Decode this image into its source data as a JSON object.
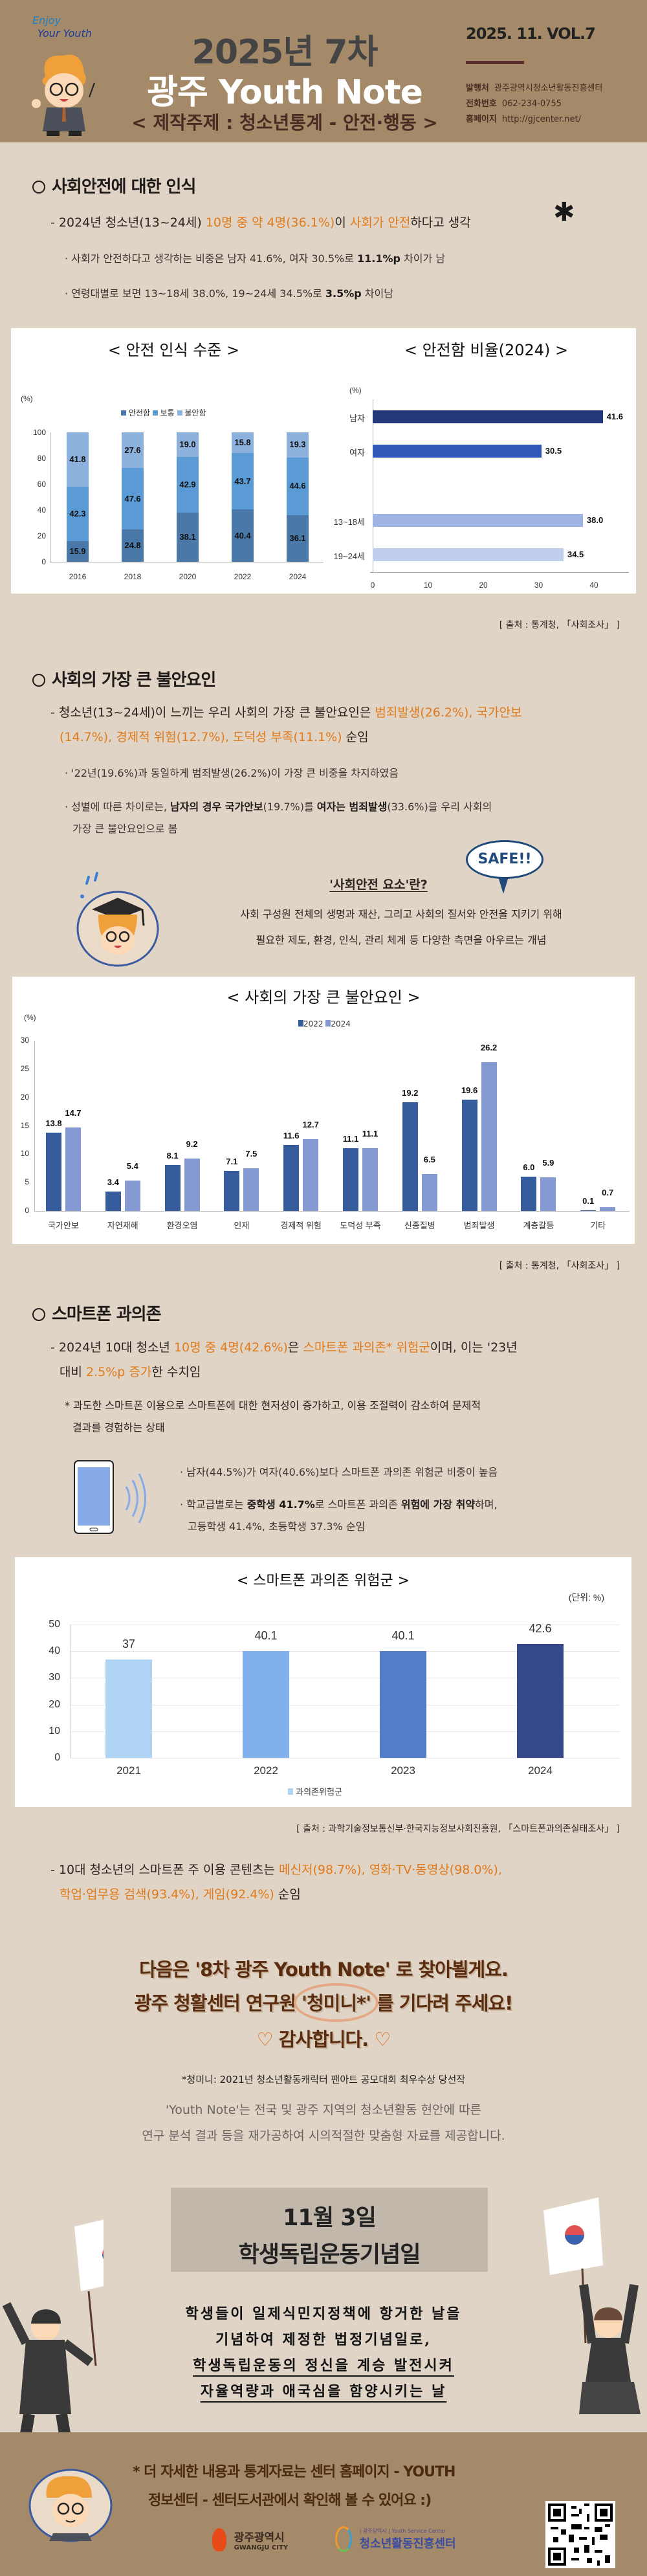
{
  "header": {
    "badge_line1": "Enjoy",
    "badge_line2": "Your Youth",
    "year_issue": "2025년 7차",
    "title": "광주 Youth Note",
    "subtitle": "< 제작주제 : 청소년통계 - 안전·행동 >",
    "volume": "2025. 11. VOL.7",
    "publisher_label": "발행처",
    "publisher_value": "광주광역시청소년활동진흥센터",
    "phone_label": "전화번호",
    "phone_value": "062-234-0755",
    "homepage_label": "홈페이지",
    "homepage_value": "http://gjcenter.net/"
  },
  "section1": {
    "title": "사회안전에 대한 인식",
    "dash_pre": "- 2024년 청소년(13~24세) ",
    "dash_o1": "10명 중 약 4명(36.1%)",
    "dash_mid": "이 ",
    "dash_o2": "사회가 안전",
    "dash_post": "하다고 생각",
    "dot1_pre": "· 사회가 안전하다고 생각하는 비중은 남자 41.6%, 여자 30.5%로 ",
    "dot1_b": "11.1%p",
    "dot1_post": " 차이가 남",
    "dot2_pre": "· 연령대별로 보면 13~18세 38.0%, 19~24세 34.5%로 ",
    "dot2_b": "3.5%p",
    "dot2_post": " 차이남",
    "source": "[ 출처 : 통계청, 「사회조사」 ]"
  },
  "section2": {
    "title": "사회의 가장 큰 불안요인",
    "dash_pre": "- 청소년(13~24세)이 느끼는 우리 사회의 가장 큰 불안요인은 ",
    "dash_o1": "범죄발생(26.2%), 국가안보",
    "dash_o2": "(14.7%), 경제적 위험(12.7%), 도덕성 부족(11.1%)",
    "dash_post": " 순임",
    "dot1": "· '22년(19.6%)과 동일하게 범죄발생(26.2%)이 가장 큰 비중을 차지하였음",
    "dot2_pre": "· 성별에 따른 차이로는, ",
    "dot2_b1": "남자의 경우 국가안보",
    "dot2_mid1": "(19.7%)를 ",
    "dot2_b2": "여자는 범죄발생",
    "dot2_mid2": "(33.6%)을 우리 사회의",
    "dot2_line2": "가장 큰 불안요인으로 봄",
    "callout_title": "'사회안전 요소'란?",
    "callout_bubble": "SAFE!!",
    "callout_line1": "사회 구성원 전체의 생명과 재산, 그리고 사회의 질서와 안전을 지키기 위해",
    "callout_line2": "필요한 제도, 환경, 인식, 관리 체계 등 다양한 측면을 아우르는 개념",
    "source": "[ 출처 : 통계청, 「사회조사」 ]"
  },
  "section3": {
    "title": "스마트폰 과의존",
    "dash_pre": "- 2024년 10대 청소년 ",
    "dash_o1": "10명 중 4명(42.6%)",
    "dash_mid": "은 ",
    "dash_o2": "스마트폰 과의존* 위험군",
    "dash_mid2": "이며, 이는 '23년",
    "dash_line2_pre": "대비 ",
    "dash_o3": "2.5%p 증가",
    "dash_line2_post": "한 수치임",
    "def_line1": "* 과도한 스마트폰 이용으로 스마트폰에 대한 현저성이 증가하고, 이용 조절력이 감소하여 문제적",
    "def_line2": "결과를 경험하는 상태",
    "dot1": "· 남자(44.5%)가 여자(40.6%)보다 스마트폰 과의존 위험군 비중이 높음",
    "dot2_pre": "· 학교급별로는 ",
    "dot2_b1": "중학생 41.7%",
    "dot2_mid": "로 스마트폰 과의존 ",
    "dot2_b2": "위험에 가장 취약",
    "dot2_post": "하며,",
    "dot2_line2": "고등학생 41.4%, 초등학생 37.3% 순임",
    "source": "[ 출처 : 과학기술정보통신부·한국지능정보사회진흥원, 「스마트폰과의존실태조사」 ]",
    "content_pre": "- 10대 청소년의 스마트폰 주 이용 콘텐츠는 ",
    "content_o1": "메신저(98.7%), 영화·TV·동영상(98.0%),",
    "content_o2": "학업·업무용 검색(93.4%), 게임(92.4%)",
    "content_post": " 순임"
  },
  "closing": {
    "line1": "다음은 '8차 광주 Youth Note' 로 찾아뵐게요.",
    "line2_pre": "광주 청활센터 연구원 ",
    "line2_name": "'청미니*'",
    "line2_post": " 를 기다려 주세요!",
    "line3": "감사합니다.",
    "heart": "♡",
    "footnote": "*청미니: 2021년 청소년활동캐릭터 팬아트 공모대회 최우수상 당선작",
    "about_line1": "'Youth Note'는 전국 및 광주 지역의 청소년활동 현안에 따른",
    "about_line2": "연구 분석 결과 등을 재가공하여 시의적절한 맞춤형 자료를 제공합니다."
  },
  "memorial": {
    "date": "11월 3일",
    "name": "학생독립운동기념일",
    "body_line1": "학생들이 일제식민지정책에 항거한 날을",
    "body_line2": "기념하여 제정한 법정기념일로,",
    "body_line3": "학생독립운동의 정신을 계승 발전시켜",
    "body_line4": "자율역량과 애국심을 함양시키는 날"
  },
  "footer": {
    "line1": "*  더 자세한 내용과 통계자료는 센터 홈페이지 - YOUTH",
    "line2": "정보센터 - 센터도서관에서 확인해 볼 수 있어요 :)",
    "logo1_ko": "광주광역시",
    "logo1_en": "GWANGJU CITY",
    "logo2_small": "| 광주광역시 | Youth Service Center",
    "logo2_ko": "청소년활동진흥센터"
  },
  "colors": {
    "header_bg": "#a48a69",
    "page_bg": "#e0d4c6",
    "highlight": "#e07a1a",
    "safe_dark": "#4a78a8",
    "normal_mid": "#5b9bd5",
    "unsafe_light": "#8cb1dd"
  },
  "chart_data": [
    {
      "type": "bar",
      "stacked": true,
      "title": "< 안전 인식 수준 >",
      "ylabel": "(%)",
      "ylim": [
        0,
        100
      ],
      "yticks": [
        0,
        20,
        40,
        60,
        80,
        100
      ],
      "categories": [
        "2016",
        "2018",
        "2020",
        "2022",
        "2024"
      ],
      "legend": [
        "안전함",
        "보통",
        "불안함"
      ],
      "legend_position": "top",
      "series": [
        {
          "name": "안전함",
          "color": "#4a78a8",
          "values": [
            15.9,
            24.8,
            38.1,
            40.4,
            36.1
          ]
        },
        {
          "name": "보통",
          "color": "#5b9bd5",
          "values": [
            42.3,
            47.6,
            42.9,
            43.7,
            44.6
          ]
        },
        {
          "name": "불안함",
          "color": "#8cb1dd",
          "values": [
            41.8,
            27.6,
            19.0,
            15.8,
            19.3
          ]
        }
      ]
    },
    {
      "type": "bar",
      "orientation": "horizontal",
      "title": "< 안전함 비율(2024) >",
      "ylabel": "(%)",
      "xlim": [
        0,
        45
      ],
      "xticks": [
        0,
        10,
        20,
        30,
        40
      ],
      "categories": [
        "남자",
        "여자",
        "13~18세",
        "19~24세"
      ],
      "values": [
        41.6,
        30.5,
        38.0,
        34.5
      ],
      "colors": [
        "#23387a",
        "#3158b8",
        "#a0b4e3",
        "#c0cdec"
      ]
    },
    {
      "type": "bar",
      "title": "< 사회의 가장 큰 불안요인 >",
      "ylabel": "(%)",
      "ylim": [
        0,
        30
      ],
      "yticks": [
        0,
        5,
        10,
        15,
        20,
        25,
        30
      ],
      "legend_position": "top",
      "categories": [
        "국가안보",
        "자연재해",
        "환경오염",
        "인재",
        "경제적 위험",
        "도덕성 부족",
        "신종질병",
        "범죄발생",
        "계층갈등",
        "기타"
      ],
      "series": [
        {
          "name": "2022",
          "color": "#365c9e",
          "values": [
            13.8,
            3.4,
            8.1,
            7.1,
            11.6,
            11.1,
            19.2,
            19.6,
            6.0,
            0.1
          ]
        },
        {
          "name": "2024",
          "color": "#8499d2",
          "values": [
            14.7,
            5.4,
            9.2,
            7.5,
            12.7,
            11.1,
            6.5,
            26.2,
            5.9,
            0.7
          ]
        }
      ]
    },
    {
      "type": "bar",
      "title": "< 스마트폰 과의존 위험군 >",
      "unit": "(단위: %)",
      "ylim": [
        0,
        50
      ],
      "yticks": [
        0,
        10,
        20,
        30,
        40,
        50
      ],
      "grid": true,
      "legend": [
        "과의존위험군"
      ],
      "legend_position": "bottom",
      "categories": [
        "2021",
        "2022",
        "2023",
        "2024"
      ],
      "values": [
        37,
        40.1,
        40.1,
        42.6
      ],
      "value_labels": [
        "37",
        "40.1",
        "40.1",
        "42.6"
      ],
      "colors": [
        "#b0d4f5",
        "#80b1ec",
        "#537dc9",
        "#34488a"
      ]
    }
  ]
}
